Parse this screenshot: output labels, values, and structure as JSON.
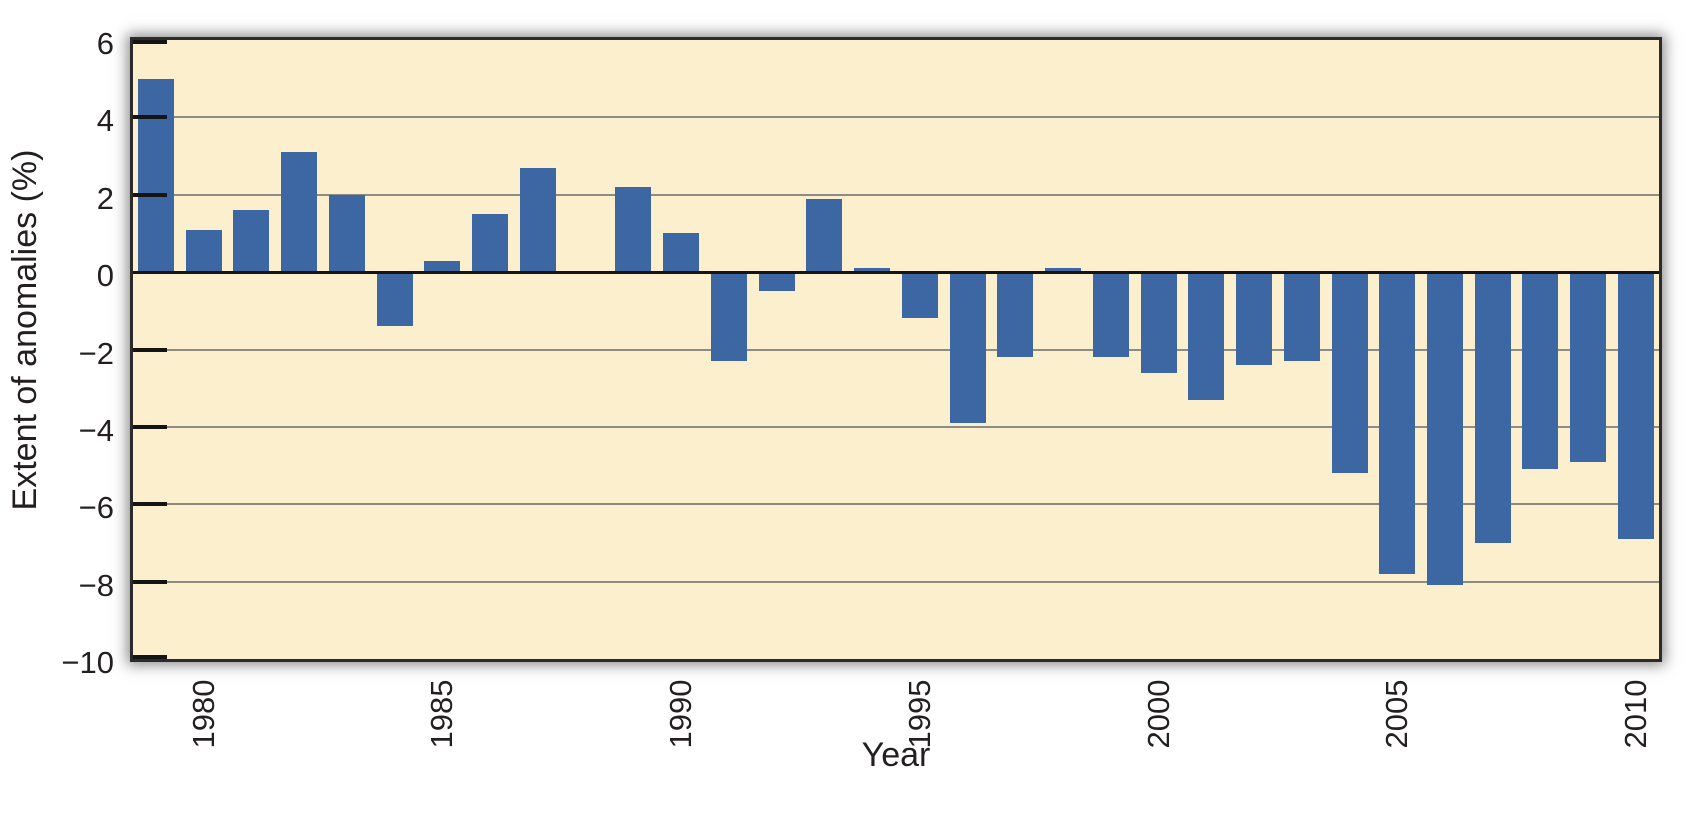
{
  "chart_data": {
    "type": "bar",
    "title": "",
    "xlabel": "Year",
    "ylabel": "Extent of anomalies (%)",
    "x": [
      1979,
      1980,
      1981,
      1982,
      1983,
      1984,
      1985,
      1986,
      1987,
      1988,
      1989,
      1990,
      1991,
      1992,
      1993,
      1994,
      1995,
      1996,
      1997,
      1998,
      1999,
      2000,
      2001,
      2002,
      2003,
      2004,
      2005,
      2006,
      2007,
      2008,
      2009,
      2010
    ],
    "values": [
      5.0,
      1.1,
      1.6,
      3.1,
      2.0,
      -1.4,
      0.3,
      1.5,
      2.7,
      0.0,
      2.2,
      1.0,
      -2.3,
      -0.5,
      1.9,
      0.1,
      -1.2,
      -3.9,
      -2.2,
      0.1,
      -2.2,
      -2.6,
      -3.3,
      -2.4,
      -2.3,
      -5.2,
      -7.8,
      -8.1,
      -7.0,
      -5.1,
      -4.9,
      -6.9
    ],
    "ylim": [
      -10,
      6
    ],
    "yticks": [
      6,
      4,
      2,
      0,
      -2,
      -4,
      -6,
      -8,
      -10
    ],
    "ytick_labels": [
      "6",
      "4",
      "2",
      "0",
      "−2",
      "−4",
      "−6",
      "−8",
      "−10"
    ],
    "xtick_years": [
      1980,
      1985,
      1990,
      1995,
      2000,
      2005,
      2010
    ],
    "xtick_labels": [
      "1980",
      "1985",
      "1990",
      "1995",
      "2000",
      "2005",
      "2010"
    ],
    "grid": true,
    "legend_position": "none",
    "colors": {
      "bar": "#3d67a3",
      "plot_background": "#FCEFCE",
      "page_background": "#ffffff",
      "gridline": "#8c8c84",
      "zero_line": "#141414",
      "frame_border": "#2b2b2b",
      "text": "#231f20"
    }
  }
}
